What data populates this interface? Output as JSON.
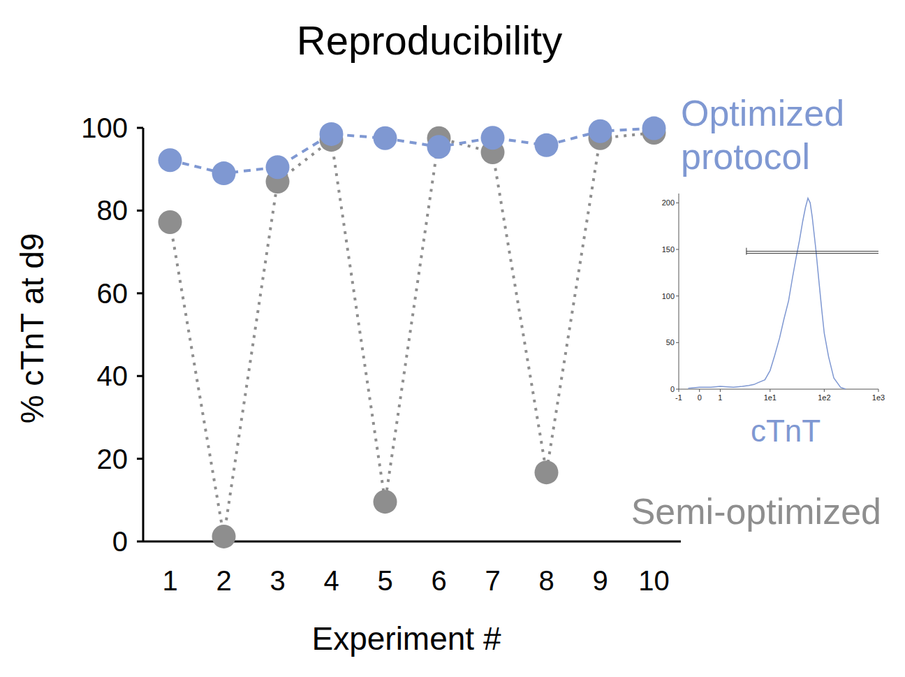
{
  "chart_data": [
    {
      "type": "line",
      "title": "Reproducibility",
      "x_label": "Experiment #",
      "y_label": "% cTnT at d9",
      "x": [
        1,
        2,
        3,
        4,
        5,
        6,
        7,
        8,
        9,
        10
      ],
      "xlim": [
        0.5,
        10.5
      ],
      "xticks": [
        1,
        2,
        3,
        4,
        5,
        6,
        7,
        8,
        9,
        10
      ],
      "ylim": [
        0,
        100
      ],
      "yticks": [
        0,
        20,
        40,
        60,
        80,
        100
      ],
      "grid": false,
      "series": [
        {
          "name": "Semi-optimized",
          "color": "#8e8e8e",
          "marker": "circle",
          "line_style": "dotted",
          "values": [
            77.2,
            1.2,
            87,
            97.1,
            9.6,
            97.5,
            94.1,
            16.7,
            97.5,
            98.8
          ]
        },
        {
          "name": "Optimized protocol",
          "color": "#7f98d2",
          "marker": "circle",
          "line_style": "dashed",
          "values": [
            92.2,
            89,
            90.5,
            98.5,
            97.5,
            95.4,
            97.6,
            95.8,
            99.2,
            99.9
          ]
        }
      ]
    },
    {
      "type": "line",
      "x_label": "cTnT",
      "log": "x",
      "x": [
        -0.5,
        0,
        0.5,
        1,
        2,
        3,
        4,
        5,
        6,
        8,
        10,
        12,
        15,
        18,
        22,
        26,
        30,
        35,
        40,
        45,
        50,
        55,
        60,
        70,
        80,
        90,
        100,
        120,
        150,
        200,
        250
      ],
      "xlim": [
        -1,
        1000
      ],
      "xticks": [
        -1,
        0,
        1,
        {
          "value": 10,
          "label": "1e1"
        },
        {
          "value": 100,
          "label": "1e2"
        },
        {
          "value": 1000,
          "label": "1e3"
        }
      ],
      "ylim": [
        0,
        210
      ],
      "yticks": [
        0,
        50,
        100,
        150,
        200
      ],
      "series": [
        {
          "color": "#7f98d2",
          "line_style": "solid",
          "values": [
            1,
            2,
            2,
            3,
            2,
            3,
            4,
            5,
            7,
            10,
            20,
            35,
            55,
            75,
            95,
            120,
            140,
            160,
            180,
            195,
            205,
            200,
            185,
            150,
            115,
            85,
            60,
            35,
            12,
            2,
            0
          ]
        }
      ],
      "gate": {
        "x": [
          3.6,
          1000
        ],
        "y": 148
      }
    }
  ]
}
